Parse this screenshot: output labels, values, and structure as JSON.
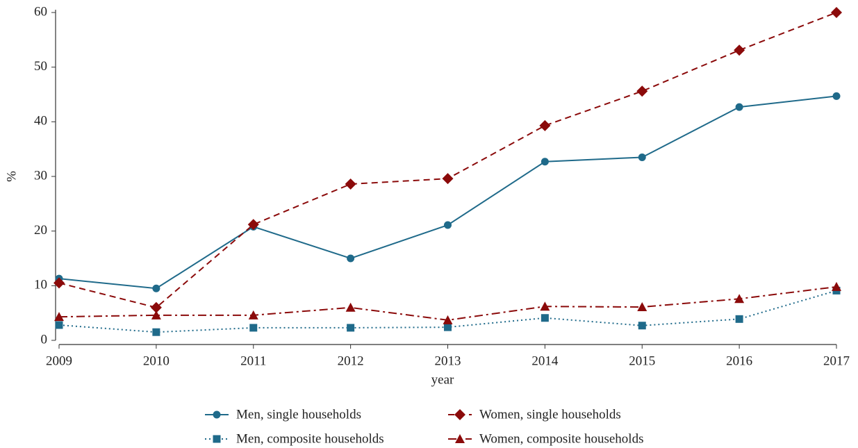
{
  "chart_data": {
    "type": "line",
    "x_label": "year",
    "y_label": "%",
    "x": [
      2009,
      2010,
      2011,
      2012,
      2013,
      2014,
      2015,
      2016,
      2017
    ],
    "xlim": [
      2009,
      2017
    ],
    "xticks": [
      2009,
      2010,
      2011,
      2012,
      2013,
      2014,
      2015,
      2016,
      2017
    ],
    "ylim": [
      0,
      60
    ],
    "yticks": [
      0,
      10,
      20,
      30,
      40,
      50,
      60
    ],
    "legend": "bottom",
    "series": [
      {
        "name": "Men, single households",
        "color": "#1f6a8a",
        "dash": "solid",
        "marker": "circle",
        "values": [
          11.3,
          9.5,
          20.8,
          15.0,
          21.1,
          32.7,
          33.5,
          42.7,
          44.7
        ]
      },
      {
        "name": "Women, single households",
        "color": "#8b0a0a",
        "dash": "dashed",
        "marker": "diamond",
        "values": [
          10.5,
          6.0,
          21.2,
          28.6,
          29.6,
          39.3,
          45.6,
          53.1,
          60.0
        ]
      },
      {
        "name": "Men, composite households",
        "color": "#1f6a8a",
        "dash": "dotted",
        "marker": "square",
        "values": [
          2.8,
          1.5,
          2.3,
          2.3,
          2.4,
          4.1,
          2.7,
          3.9,
          9.1
        ]
      },
      {
        "name": "Women, composite households",
        "color": "#8b0a0a",
        "dash": "dashdot",
        "marker": "triangle",
        "values": [
          4.3,
          4.6,
          4.6,
          6.0,
          3.7,
          6.2,
          6.1,
          7.6,
          9.8
        ]
      }
    ]
  }
}
